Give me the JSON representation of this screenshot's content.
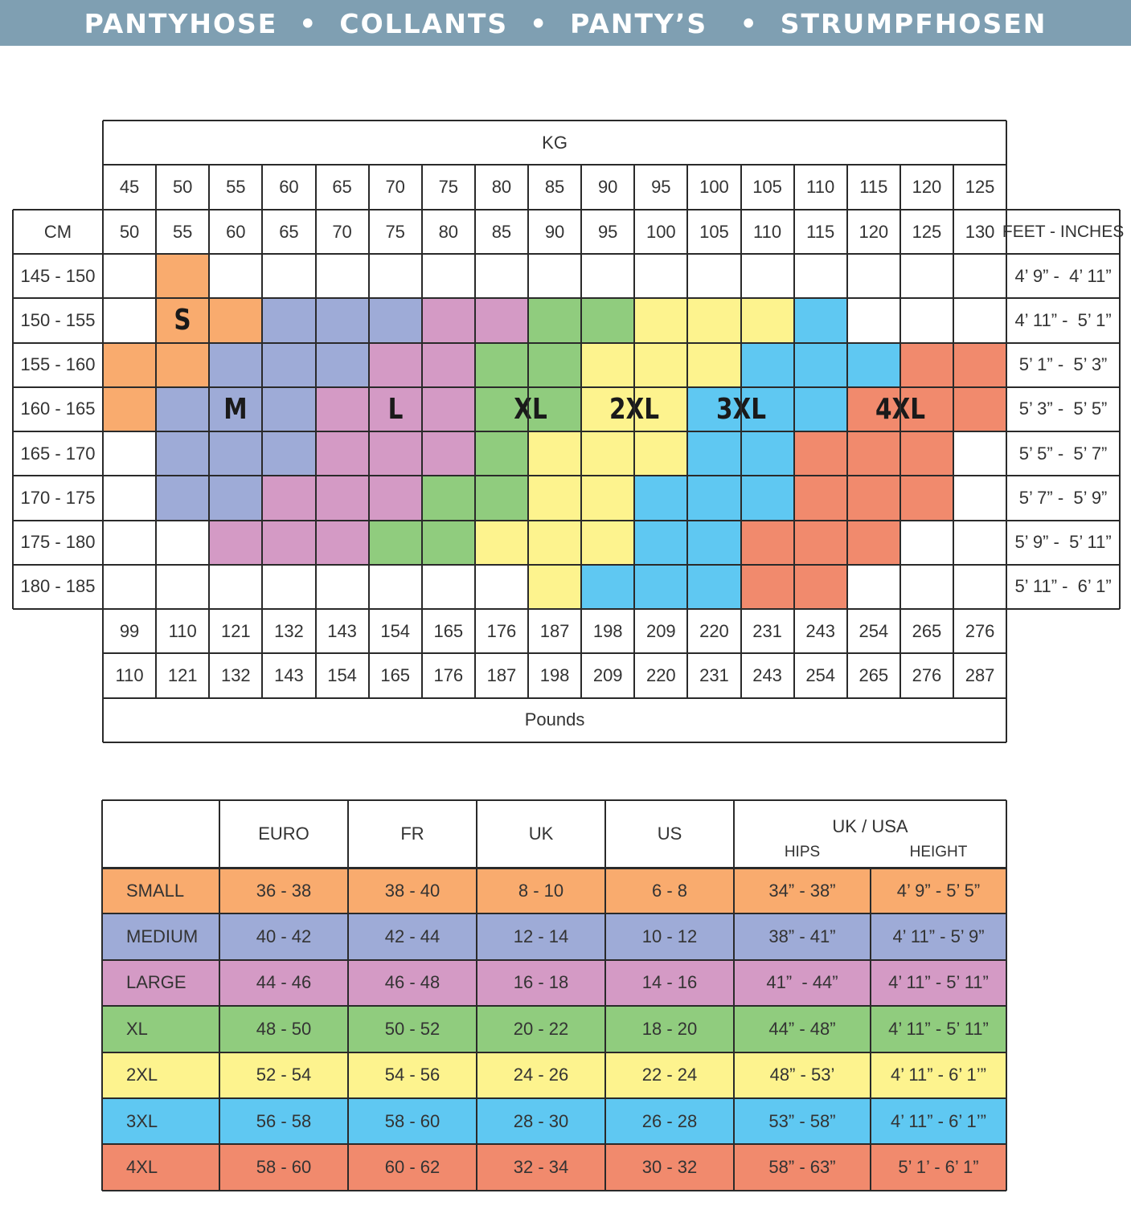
{
  "banner": {
    "title": "PANTYHOSE  •  COLLANTS  •  PANTY’S   •  STRUMPFHOSEN"
  },
  "size_chart": {
    "kg_label": "KG",
    "cm_label": "CM",
    "feet_label": "FEET - INCHES",
    "pounds_label": "Pounds",
    "kg_from": [
      "45",
      "50",
      "55",
      "60",
      "65",
      "70",
      "75",
      "80",
      "85",
      "90",
      "95",
      "100",
      "105",
      "110",
      "115",
      "120",
      "125"
    ],
    "kg_to": [
      "50",
      "55",
      "60",
      "65",
      "70",
      "75",
      "80",
      "85",
      "90",
      "95",
      "100",
      "105",
      "110",
      "115",
      "120",
      "125",
      "130"
    ],
    "lb_from": [
      "99",
      "110",
      "121",
      "132",
      "143",
      "154",
      "165",
      "176",
      "187",
      "198",
      "209",
      "220",
      "231",
      "243",
      "254",
      "265",
      "276"
    ],
    "lb_to": [
      "110",
      "121",
      "132",
      "143",
      "154",
      "165",
      "176",
      "187",
      "198",
      "209",
      "220",
      "231",
      "243",
      "254",
      "265",
      "276",
      "287"
    ],
    "cm_rows": [
      "145 - 150",
      "150 - 155",
      "155 - 160",
      "160 - 165",
      "165 - 170",
      "170 - 175",
      "175 - 180",
      "180 - 185"
    ],
    "feet_rows": [
      "4’ 9” -  4’ 11”",
      "4’ 11” -  5’ 1”",
      "5’ 1” -  5’ 3”",
      "5’ 3” -  5’ 5”",
      "5’ 5” -  5’ 7”",
      "5’ 7” -  5’ 9”",
      "5’ 9” -  5’ 11”",
      "5’ 11” -  6’ 1”"
    ],
    "grid": [
      [
        "",
        "S",
        "",
        "",
        "",
        "",
        "",
        "",
        "",
        "",
        "",
        "",
        "",
        "",
        "",
        "",
        ""
      ],
      [
        "",
        "S",
        "S",
        "M",
        "M",
        "M",
        "L",
        "L",
        "XL",
        "XL",
        "2XL",
        "2XL",
        "2XL",
        "3XL",
        "",
        "",
        ""
      ],
      [
        "S",
        "S",
        "M",
        "M",
        "M",
        "L",
        "L",
        "XL",
        "XL",
        "2XL",
        "2XL",
        "2XL",
        "3XL",
        "3XL",
        "3XL",
        "4XL",
        "4XL"
      ],
      [
        "S",
        "M",
        "M",
        "M",
        "L",
        "L",
        "L",
        "XL",
        "XL",
        "2XL",
        "2XL",
        "3XL",
        "3XL",
        "3XL",
        "4XL",
        "4XL",
        "4XL"
      ],
      [
        "",
        "M",
        "M",
        "M",
        "L",
        "L",
        "L",
        "XL",
        "2XL",
        "2XL",
        "2XL",
        "3XL",
        "3XL",
        "4XL",
        "4XL",
        "4XL",
        ""
      ],
      [
        "",
        "M",
        "M",
        "L",
        "L",
        "L",
        "XL",
        "XL",
        "2XL",
        "2XL",
        "3XL",
        "3XL",
        "3XL",
        "4XL",
        "4XL",
        "4XL",
        ""
      ],
      [
        "",
        "",
        "L",
        "L",
        "L",
        "XL",
        "XL",
        "2XL",
        "2XL",
        "2XL",
        "3XL",
        "3XL",
        "4XL",
        "4XL",
        "4XL",
        "",
        ""
      ],
      [
        "",
        "",
        "",
        "",
        "",
        "",
        "",
        "",
        "2XL",
        "3XL",
        "3XL",
        "3XL",
        "4XL",
        "4XL",
        "",
        "",
        ""
      ]
    ],
    "size_labels": [
      "S",
      "M",
      "L",
      "XL",
      "2XL",
      "3XL",
      "4XL"
    ],
    "colors": {
      "S": "#f9ab6e",
      "M": "#9eabd7",
      "L": "#d49ac5",
      "XL": "#90cc7e",
      "2XL": "#fdf38e",
      "3XL": "#5fc8f2",
      "4XL": "#f18a6d"
    }
  },
  "conversion_table": {
    "headers": [
      "EURO",
      "FR",
      "UK",
      "US"
    ],
    "ukusa_label": "UK / USA",
    "hips_label": "HIPS",
    "height_label": "HEIGHT",
    "rows": [
      {
        "size": "SMALL",
        "euro": "36 - 38",
        "fr": "38 - 40",
        "uk": "8 - 10",
        "us": "6 - 8",
        "hips": "34” - 38”",
        "height": "4’ 9” - 5’ 5”",
        "color": "#f9ab6e"
      },
      {
        "size": "MEDIUM",
        "euro": "40 - 42",
        "fr": "42 - 44",
        "uk": "12 - 14",
        "us": "10 - 12",
        "hips": "38” - 41”",
        "height": "4’ 11” - 5’ 9”",
        "color": "#9eabd7"
      },
      {
        "size": "LARGE",
        "euro": "44 - 46",
        "fr": "46 - 48",
        "uk": "16 - 18",
        "us": "14 - 16",
        "hips": "41”  - 44”",
        "height": "4’ 11” - 5’ 11”",
        "color": "#d49ac5"
      },
      {
        "size": "XL",
        "euro": "48 - 50",
        "fr": "50 - 52",
        "uk": "20 - 22",
        "us": "18 - 20",
        "hips": "44” - 48”",
        "height": "4’ 11” - 5’ 11”",
        "color": "#90cc7e"
      },
      {
        "size": "2XL",
        "euro": "52 - 54",
        "fr": "54 - 56",
        "uk": "24 - 26",
        "us": "22 - 24",
        "hips": "48” - 53’",
        "height": "4’ 11” - 6’ 1’”",
        "color": "#fdf38e"
      },
      {
        "size": "3XL",
        "euro": "56 - 58",
        "fr": "58 - 60",
        "uk": "28 - 30",
        "us": "26 - 28",
        "hips": "53” - 58”",
        "height": "4’ 11” - 6’ 1’”",
        "color": "#5fc8f2"
      },
      {
        "size": "4XL",
        "euro": "58 - 60",
        "fr": "60 - 62",
        "uk": "32 - 34",
        "us": "30 - 32",
        "hips": "58” - 63”",
        "height": "5’ 1’ - 6’ 1”",
        "color": "#f18a6d"
      }
    ]
  }
}
